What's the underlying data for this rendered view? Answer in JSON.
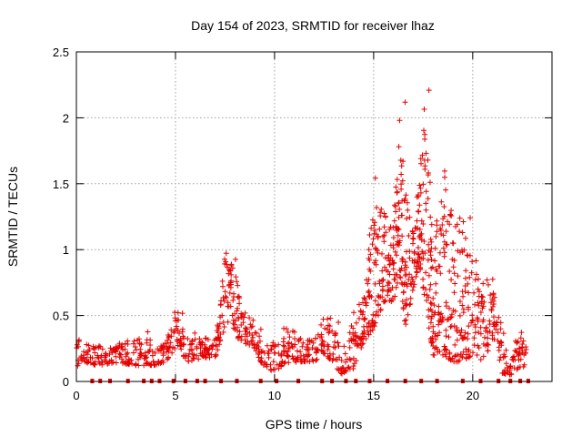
{
  "chart_data": {
    "type": "scatter",
    "title": "Day 154 of 2023, SRMTID for receiver lhaz",
    "xlabel": "GPS time / hours",
    "ylabel": "SRMTID / TECUs",
    "xlim": [
      0,
      24
    ],
    "ylim": [
      0,
      2.5
    ],
    "grid": true,
    "xticks": [
      0,
      5,
      10,
      15,
      20
    ],
    "xtick_labels": [
      "0",
      "5",
      "10",
      "15",
      "20"
    ],
    "yticks": [
      0,
      0.5,
      1,
      1.5,
      2,
      2.5
    ],
    "ytick_labels": [
      "0",
      "0.5",
      "1",
      "1.5",
      "2",
      "2.5"
    ],
    "marker": "plus",
    "color": "#e60000",
    "envelope": [
      [
        0.0,
        0.1,
        0.34
      ],
      [
        0.3,
        0.13,
        0.31
      ],
      [
        0.6,
        0.14,
        0.28
      ],
      [
        1.0,
        0.12,
        0.27
      ],
      [
        1.5,
        0.13,
        0.27
      ],
      [
        2.0,
        0.14,
        0.3
      ],
      [
        2.5,
        0.13,
        0.31
      ],
      [
        3.0,
        0.12,
        0.31
      ],
      [
        3.5,
        0.12,
        0.38
      ],
      [
        4.0,
        0.12,
        0.26
      ],
      [
        4.5,
        0.15,
        0.29
      ],
      [
        5.0,
        0.25,
        0.55
      ],
      [
        5.2,
        0.28,
        0.54
      ],
      [
        5.5,
        0.15,
        0.37
      ],
      [
        6.0,
        0.16,
        0.32
      ],
      [
        6.5,
        0.18,
        0.34
      ],
      [
        7.0,
        0.18,
        0.35
      ],
      [
        7.5,
        0.4,
        0.98
      ],
      [
        7.8,
        0.5,
        0.9
      ],
      [
        8.0,
        0.35,
        0.94
      ],
      [
        8.3,
        0.3,
        0.55
      ],
      [
        8.7,
        0.28,
        0.5
      ],
      [
        9.0,
        0.25,
        0.4
      ],
      [
        9.5,
        0.08,
        0.28
      ],
      [
        10.0,
        0.08,
        0.3
      ],
      [
        10.5,
        0.12,
        0.42
      ],
      [
        11.0,
        0.14,
        0.38
      ],
      [
        11.5,
        0.15,
        0.3
      ],
      [
        12.0,
        0.15,
        0.36
      ],
      [
        12.5,
        0.2,
        0.5
      ],
      [
        13.0,
        0.15,
        0.45
      ],
      [
        13.3,
        0.05,
        0.3
      ],
      [
        13.6,
        0.05,
        0.2
      ],
      [
        14.0,
        0.1,
        0.55
      ],
      [
        14.5,
        0.3,
        0.65
      ],
      [
        15.0,
        0.4,
        1.55
      ],
      [
        15.5,
        0.6,
        1.3
      ],
      [
        16.0,
        0.6,
        1.2
      ],
      [
        16.3,
        0.8,
        2.15
      ],
      [
        16.6,
        0.4,
        1.45
      ],
      [
        17.0,
        0.7,
        1.3
      ],
      [
        17.3,
        0.9,
        1.5
      ],
      [
        17.6,
        0.6,
        2.22
      ],
      [
        18.0,
        0.2,
        1.2
      ],
      [
        18.5,
        0.2,
        1.62
      ],
      [
        19.0,
        0.15,
        1.25
      ],
      [
        19.5,
        0.15,
        1.25
      ],
      [
        20.0,
        0.2,
        0.95
      ],
      [
        20.5,
        0.15,
        0.75
      ],
      [
        21.0,
        0.3,
        0.8
      ],
      [
        21.5,
        0.05,
        0.4
      ],
      [
        22.0,
        0.05,
        0.2
      ],
      [
        22.3,
        0.1,
        0.4
      ],
      [
        22.8,
        0.12,
        0.22
      ]
    ],
    "zero_markers_hours": [
      0.8,
      1.2,
      1.7,
      2.6,
      3.4,
      3.8,
      4.2,
      4.9,
      5.5,
      6.1,
      6.5,
      7.3,
      8.1,
      9.3,
      10.1,
      11.2,
      12.4,
      12.9,
      13.6,
      14.1,
      14.8,
      15.7,
      16.6,
      17.4,
      18.2,
      19.5,
      20.4,
      21.3,
      21.9,
      22.4,
      22.8
    ]
  }
}
